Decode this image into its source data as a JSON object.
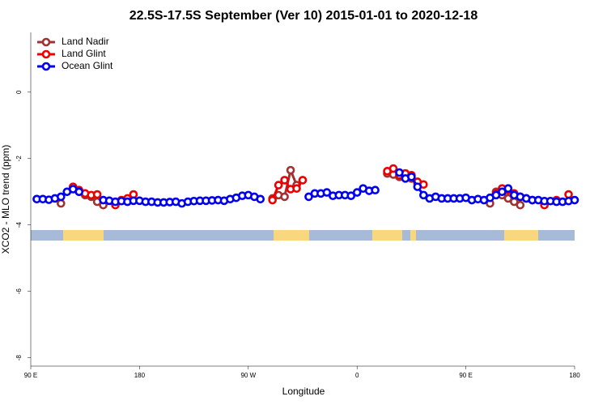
{
  "chart_data": {
    "type": "line",
    "title": "22.5S-17.5S September (Ver 10)   2015-01-01 to 2020-12-18",
    "x_label": "Longitude",
    "y_label": "XCO2 - MLO trend (ppm)",
    "xlim": [
      90,
      540
    ],
    "xticks": [
      {
        "value": 90,
        "label": "90 E"
      },
      180,
      {
        "value": 270,
        "label": "90 W"
      },
      {
        "value": 360,
        "label": "0"
      },
      {
        "value": 450,
        "label": "90 E"
      },
      {
        "value": 540,
        "label": "180"
      }
    ],
    "ylim": [
      -8.25,
      1.8
    ],
    "yticks": [
      0,
      -2,
      -4,
      -6,
      -8
    ],
    "legend": "top-left",
    "x": [
      95,
      100,
      105,
      110,
      115,
      120,
      125,
      130,
      135,
      140,
      145,
      150,
      155,
      160,
      165,
      170,
      175,
      180,
      185,
      190,
      195,
      200,
      205,
      210,
      215,
      220,
      225,
      230,
      235,
      240,
      245,
      250,
      255,
      260,
      265,
      270,
      275,
      280,
      285,
      290,
      295,
      300,
      305,
      310,
      315,
      320,
      325,
      330,
      335,
      340,
      345,
      350,
      355,
      360,
      365,
      370,
      375,
      380,
      385,
      390,
      395,
      400,
      405,
      410,
      415,
      420,
      425,
      430,
      435,
      440,
      445,
      450,
      455,
      460,
      465,
      470,
      475,
      480,
      485,
      490,
      495,
      500,
      505,
      510,
      515,
      520,
      525,
      530,
      535,
      540
    ],
    "series": [
      {
        "name": "Land Nadir",
        "color": "#a03232",
        "values": [
          null,
          null,
          null,
          null,
          -3.35,
          null,
          -2.9,
          -3.0,
          -3.1,
          -3.15,
          -3.3,
          -3.4,
          null,
          null,
          null,
          null,
          null,
          null,
          null,
          null,
          null,
          null,
          null,
          null,
          null,
          null,
          null,
          null,
          null,
          null,
          null,
          null,
          null,
          null,
          null,
          null,
          null,
          null,
          null,
          -3.2,
          -3.1,
          -3.15,
          -2.35,
          -2.8,
          null,
          null,
          null,
          null,
          null,
          null,
          null,
          null,
          null,
          null,
          null,
          null,
          null,
          null,
          -2.45,
          -2.48,
          -2.55,
          -2.45,
          -2.6,
          -2.75,
          null,
          null,
          null,
          null,
          null,
          null,
          null,
          null,
          null,
          null,
          null,
          -3.35,
          -3.0,
          -3.1,
          -3.2,
          -3.3,
          -3.4,
          null,
          null,
          null,
          null,
          null,
          null,
          null,
          null,
          null
        ]
      },
      {
        "name": "Land Glint",
        "color": "#ee0000",
        "values": [
          null,
          null,
          null,
          null,
          null,
          null,
          -2.85,
          -2.95,
          -3.05,
          -3.1,
          -3.08,
          null,
          null,
          -3.4,
          -3.25,
          -3.2,
          -3.08,
          null,
          null,
          null,
          null,
          null,
          null,
          null,
          null,
          null,
          null,
          null,
          null,
          null,
          null,
          null,
          null,
          null,
          null,
          null,
          null,
          null,
          null,
          -3.25,
          -2.8,
          -2.65,
          -2.92,
          -2.9,
          -2.65,
          null,
          null,
          null,
          null,
          null,
          null,
          null,
          null,
          null,
          null,
          null,
          null,
          null,
          -2.38,
          -2.3,
          -2.5,
          -2.45,
          -2.5,
          -2.7,
          -2.78,
          null,
          null,
          null,
          null,
          null,
          null,
          null,
          null,
          null,
          null,
          null,
          -3.05,
          -2.9,
          -2.95,
          -3.05,
          -3.15,
          -3.2,
          -3.25,
          null,
          -3.4,
          null,
          -3.25,
          null,
          -3.08,
          null
        ]
      },
      {
        "name": "Ocean Glint",
        "color": "#0000ee",
        "values": [
          -3.22,
          -3.22,
          -3.24,
          -3.2,
          -3.15,
          -3.0,
          -2.92,
          -3.0,
          null,
          null,
          null,
          -3.25,
          -3.27,
          -3.3,
          -3.28,
          -3.3,
          -3.27,
          -3.27,
          -3.3,
          -3.3,
          -3.32,
          -3.32,
          -3.31,
          -3.3,
          -3.35,
          -3.3,
          -3.28,
          -3.27,
          -3.27,
          -3.26,
          -3.25,
          -3.27,
          -3.22,
          -3.18,
          -3.12,
          -3.1,
          -3.15,
          -3.22,
          null,
          null,
          null,
          null,
          null,
          null,
          null,
          -3.15,
          -3.05,
          -3.05,
          -3.02,
          -3.12,
          -3.1,
          -3.1,
          -3.12,
          -3.02,
          -2.9,
          -2.97,
          -2.95,
          null,
          null,
          null,
          -2.42,
          -2.6,
          -2.55,
          -2.85,
          -3.1,
          -3.2,
          -3.15,
          -3.2,
          -3.2,
          -3.2,
          -3.2,
          -3.18,
          -3.25,
          -3.22,
          -3.25,
          -3.18,
          -3.1,
          -3.0,
          -2.9,
          -3.1,
          -3.15,
          -3.2,
          -3.25,
          -3.25,
          -3.28,
          -3.28,
          -3.3,
          -3.3,
          -3.28,
          -3.25
        ]
      }
    ]
  }
}
